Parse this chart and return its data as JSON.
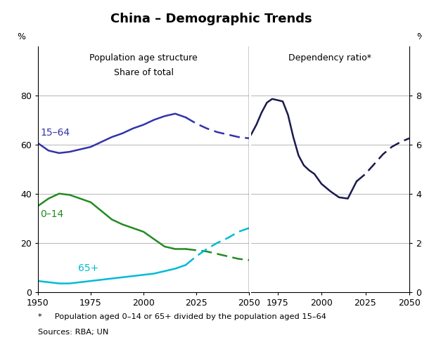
{
  "title": "China – Demographic Trends",
  "left_panel_title_line1": "Population age structure",
  "left_panel_title_line2": "Share of total",
  "right_panel_title": "Dependency ratio*",
  "ylabel_left": "%",
  "ylabel_right": "%",
  "footnote_line1": "*     Population aged 0–14 or 65+ divided by the population aged 15–64",
  "footnote_line2": "Sources: RBA; UN",
  "ylim": [
    0,
    100
  ],
  "yticks": [
    0,
    20,
    40,
    60,
    80
  ],
  "left_xlim": [
    1950,
    2050
  ],
  "right_xlim": [
    1960,
    2050
  ],
  "left_xticks": [
    1950,
    1975,
    2000,
    2025,
    2050
  ],
  "right_xticks": [
    1975,
    2000,
    2025,
    2050
  ],
  "left_xticklabels": [
    "1950",
    "1975",
    "2000",
    "2025",
    "2050"
  ],
  "right_xticklabels": [
    "1975",
    "2000",
    "2025",
    "2050"
  ],
  "series_1564_solid_x": [
    1950,
    1955,
    1960,
    1965,
    1970,
    1975,
    1980,
    1985,
    1990,
    1995,
    2000,
    2005,
    2010,
    2015,
    2020
  ],
  "series_1564_solid_y": [
    60.5,
    57.5,
    56.5,
    57.0,
    58.0,
    59.0,
    61.0,
    63.0,
    64.5,
    66.5,
    68.0,
    70.0,
    71.5,
    72.5,
    71.0
  ],
  "series_1564_dash_x": [
    2020,
    2025,
    2030,
    2035,
    2040,
    2045,
    2050
  ],
  "series_1564_dash_y": [
    71.0,
    68.5,
    66.5,
    65.0,
    64.0,
    63.0,
    62.5
  ],
  "series_014_solid_x": [
    1950,
    1955,
    1960,
    1965,
    1970,
    1975,
    1980,
    1985,
    1990,
    1995,
    2000,
    2005,
    2010,
    2015,
    2020
  ],
  "series_014_solid_y": [
    35.0,
    38.0,
    40.0,
    39.5,
    38.0,
    36.5,
    33.0,
    29.5,
    27.5,
    26.0,
    24.5,
    21.5,
    18.5,
    17.5,
    17.5
  ],
  "series_014_dash_x": [
    2020,
    2025,
    2030,
    2035,
    2040,
    2045,
    2050
  ],
  "series_014_dash_y": [
    17.5,
    17.0,
    16.5,
    15.5,
    14.5,
    13.5,
    13.0
  ],
  "series_65p_solid_x": [
    1950,
    1955,
    1960,
    1965,
    1970,
    1975,
    1980,
    1985,
    1990,
    1995,
    2000,
    2005,
    2010,
    2015,
    2020
  ],
  "series_65p_solid_y": [
    4.5,
    4.0,
    3.5,
    3.5,
    4.0,
    4.5,
    5.0,
    5.5,
    6.0,
    6.5,
    7.0,
    7.5,
    8.5,
    9.5,
    11.0
  ],
  "series_65p_dash_x": [
    2020,
    2025,
    2030,
    2035,
    2040,
    2045,
    2050
  ],
  "series_65p_dash_y": [
    11.0,
    14.5,
    17.5,
    20.0,
    22.0,
    24.5,
    26.0
  ],
  "dep_ratio_solid_x": [
    1960,
    1963,
    1966,
    1969,
    1972,
    1975,
    1978,
    1981,
    1984,
    1987,
    1990,
    1993,
    1996,
    2000,
    2005,
    2010,
    2015,
    2020
  ],
  "dep_ratio_solid_y": [
    64.0,
    68.0,
    73.0,
    77.0,
    78.5,
    78.0,
    77.5,
    72.0,
    63.0,
    55.5,
    51.5,
    49.5,
    48.0,
    44.0,
    41.0,
    38.5,
    38.0,
    45.0
  ],
  "dep_ratio_dash_x": [
    2020,
    2025,
    2030,
    2035,
    2040,
    2045,
    2050
  ],
  "dep_ratio_dash_y": [
    45.0,
    48.0,
    52.0,
    56.0,
    59.0,
    61.0,
    62.5
  ],
  "color_1564": "#3333aa",
  "color_014": "#228b22",
  "color_65p": "#00bcd4",
  "color_dep": "#1a1a4e",
  "label_1564": "15–64",
  "label_014": "0–14",
  "label_65p": "65+",
  "gridcolor": "#aaaaaa",
  "background_color": "#ffffff"
}
